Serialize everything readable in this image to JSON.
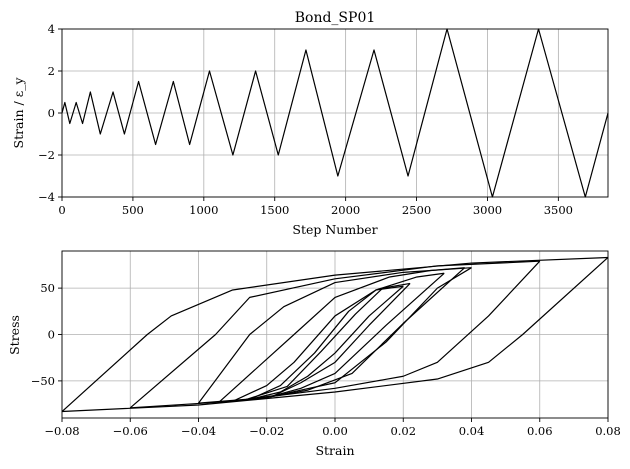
{
  "chart_data": [
    {
      "type": "line",
      "title": "Bond_SP01",
      "xlabel": "Step Number",
      "ylabel": "Strain / ε_y",
      "xlim": [
        0,
        3850
      ],
      "ylim": [
        -4,
        4
      ],
      "xticks": [
        0,
        500,
        1000,
        1500,
        2000,
        2500,
        3000,
        3500
      ],
      "xtick_labels": [
        "0",
        "500",
        "1000",
        "1500",
        "2000",
        "2500",
        "3000",
        "3500"
      ],
      "yticks": [
        -4,
        -2,
        0,
        2,
        4
      ],
      "ytick_labels": [
        "−4",
        "−2",
        "0",
        "2",
        "4"
      ],
      "grid": true,
      "series": [
        {
          "x": [
            0,
            20,
            55,
            100,
            145,
            200,
            270,
            360,
            440,
            540,
            660,
            785,
            900,
            1040,
            1205,
            1365,
            1525,
            1720,
            1945,
            2200,
            2440,
            2715,
            3035,
            3360,
            3690,
            3850
          ],
          "y": [
            0,
            0.5,
            -0.5,
            0.5,
            -0.5,
            1,
            -1,
            1,
            -1,
            1.5,
            -1.5,
            1.5,
            -1.5,
            2,
            -2,
            2,
            -2,
            3,
            -3,
            3,
            -3,
            4,
            -4,
            4,
            -4,
            0
          ]
        }
      ]
    },
    {
      "type": "line",
      "title": "",
      "xlabel": "Strain",
      "ylabel": "Stress",
      "xlim": [
        -0.08,
        0.08
      ],
      "ylim": [
        -90,
        90
      ],
      "xticks": [
        -0.08,
        -0.06,
        -0.04,
        -0.02,
        0,
        0.02,
        0.04,
        0.06,
        0.08
      ],
      "xtick_labels": [
        "−0.08",
        "−0.06",
        "−0.04",
        "−0.02",
        "0.00",
        "0.02",
        "0.04",
        "0.06",
        "0.08"
      ],
      "yticks": [
        -50,
        0,
        50
      ],
      "ytick_labels": [
        "−50",
        "0",
        "50"
      ],
      "grid": true,
      "series": [
        {
          "x": [
            -0.025,
            -0.016,
            -0.008,
            0.0,
            0.01,
            0.02
          ],
          "y": [
            -70,
            -62,
            -45,
            -20,
            20,
            52
          ]
        },
        {
          "x": [
            0.02,
            0.012,
            0.004,
            -0.006,
            -0.016,
            -0.025
          ],
          "y": [
            52,
            48,
            25,
            -20,
            -55,
            -70
          ]
        },
        {
          "x": [
            -0.026,
            -0.018,
            -0.01,
            0.0,
            0.01,
            0.022
          ],
          "y": [
            -70,
            -66,
            -52,
            -30,
            10,
            55
          ]
        },
        {
          "x": [
            0.022,
            0.014,
            0.006,
            -0.004,
            -0.014,
            -0.026
          ],
          "y": [
            55,
            50,
            22,
            -18,
            -56,
            -70
          ]
        },
        {
          "x": [
            -0.03,
            -0.02,
            -0.01,
            0.0,
            0.015,
            0.032
          ],
          "y": [
            -72,
            -68,
            -58,
            -42,
            10,
            66
          ]
        },
        {
          "x": [
            0.032,
            0.024,
            0.012,
            0.0,
            -0.012,
            -0.02,
            -0.03
          ],
          "y": [
            66,
            62,
            48,
            20,
            -30,
            -55,
            -72
          ]
        },
        {
          "x": [
            -0.034,
            -0.02,
            -0.008,
            0.005,
            0.02,
            0.038
          ],
          "y": [
            -73,
            -68,
            -60,
            -42,
            12,
            72
          ]
        },
        {
          "x": [
            0.038,
            0.028,
            0.016,
            0.0,
            -0.012,
            -0.034
          ],
          "y": [
            72,
            69,
            62,
            40,
            0,
            -73
          ]
        },
        {
          "x": [
            -0.04,
            -0.02,
            0.0,
            0.015,
            0.03,
            0.04
          ],
          "y": [
            -74,
            -68,
            -52,
            -8,
            50,
            72
          ]
        },
        {
          "x": [
            0.04,
            0.02,
            0.0,
            -0.015,
            -0.025,
            -0.04
          ],
          "y": [
            72,
            67,
            56,
            30,
            0,
            -74
          ]
        },
        {
          "x": [
            -0.06,
            -0.03,
            0.0,
            0.02,
            0.03,
            0.045,
            0.06
          ],
          "y": [
            -79,
            -72,
            -58,
            -45,
            -30,
            20,
            79
          ]
        },
        {
          "x": [
            0.06,
            0.03,
            0.0,
            -0.025,
            -0.035,
            -0.06
          ],
          "y": [
            79,
            74,
            60,
            40,
            0,
            -79
          ]
        },
        {
          "x": [
            -0.08,
            -0.04,
            0.0,
            0.03,
            0.045,
            0.055,
            0.08
          ],
          "y": [
            -83,
            -76,
            -62,
            -48,
            -30,
            0,
            83
          ]
        },
        {
          "x": [
            0.08,
            0.04,
            0.0,
            -0.03,
            -0.048,
            -0.055,
            -0.08
          ],
          "y": [
            83,
            77,
            64,
            48,
            20,
            0,
            -83
          ]
        }
      ]
    }
  ]
}
